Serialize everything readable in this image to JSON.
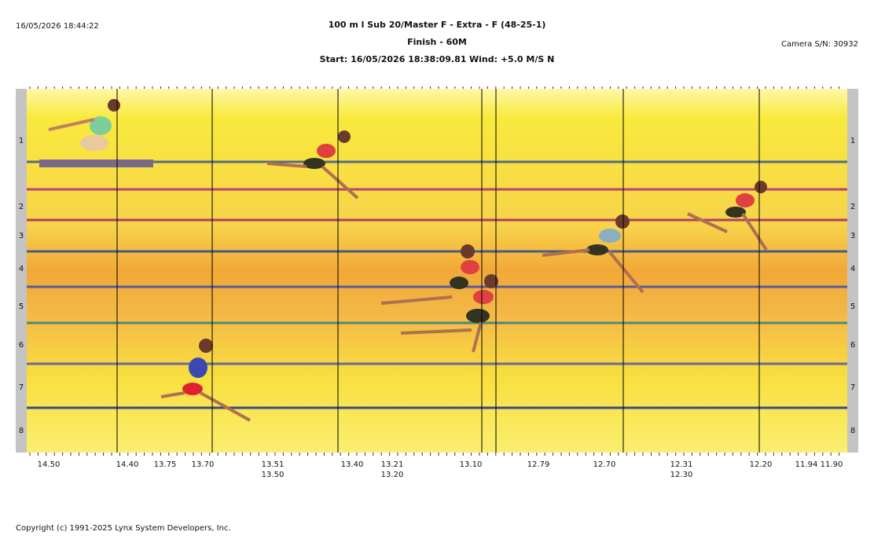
{
  "header": {
    "timestamp": "16/05/2026 18:44:22",
    "title": "100 m l Sub 20/Master F - Extra - F (48-25-1)",
    "subtitle": "Finish - 60M",
    "start": "Start: 16/05/2026 18:38:09.81",
    "wind": "Wind: +5.0 M/S N",
    "camera": "Camera S/N: 30932"
  },
  "lanes": [
    "1",
    "2",
    "3",
    "4",
    "5",
    "6",
    "7",
    "8"
  ],
  "time_labels": [
    [
      "14.50"
    ],
    [
      "14.40"
    ],
    [
      "13.75"
    ],
    [
      "13.70"
    ],
    [
      "13.51",
      "13.50"
    ],
    [
      "13.40"
    ],
    [
      "13.21",
      "13.20"
    ],
    [
      "13.10"
    ],
    [
      "12.79"
    ],
    [
      "12.70"
    ],
    [
      "12.31",
      "12.30"
    ],
    [
      "12.20"
    ],
    [
      "11.94"
    ],
    [
      "11.90"
    ]
  ],
  "footer": {
    "copyright": "Copyright (c) 1991-2025 Lynx System Developers, Inc."
  }
}
